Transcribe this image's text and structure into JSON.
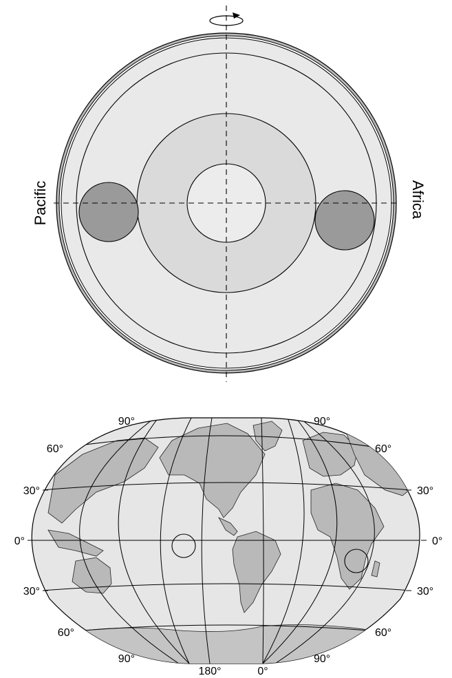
{
  "cross_section": {
    "left_label": "Pacific",
    "right_label": "Africa",
    "colors": {
      "mantle": "#e9e9e9",
      "outer_core": "#dadada",
      "inner_core": "#ececec",
      "blob": "#9a9a9a",
      "crust_ring": "#b8b8b8"
    },
    "icons": [
      "rotation-arrow-icon"
    ]
  },
  "map": {
    "lat_labels_left": [
      "90°",
      "60°",
      "30°",
      "0°",
      "30°",
      "60°",
      "90°"
    ],
    "lat_labels_right": [
      "90°",
      "60°",
      "30°",
      "0°",
      "30°",
      "60°",
      "90°"
    ],
    "lon_labels": [
      "180°",
      "0°"
    ],
    "colors": {
      "ocean": "#e6e6e6",
      "land": "#b9b9b9",
      "antarctica": "#c4c4c4"
    }
  }
}
